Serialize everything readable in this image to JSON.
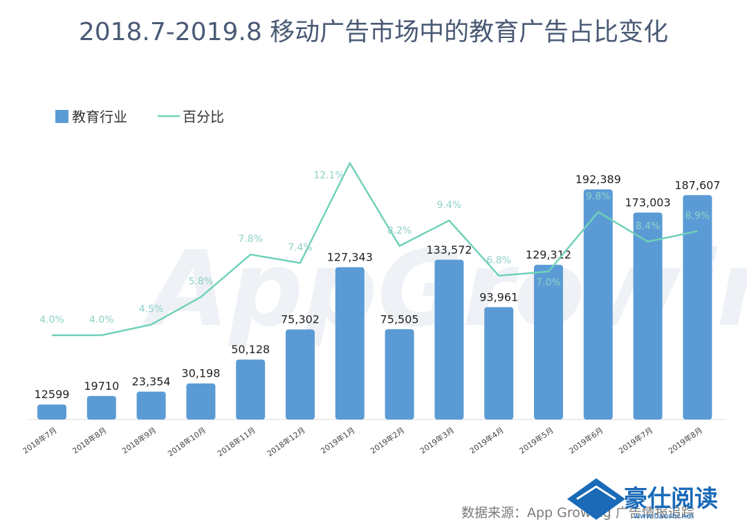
{
  "title": "2018.7-2019.8 移动广告市场中的教育广告占比变化",
  "legend": {
    "bar_label": "教育行业",
    "line_label": "百分比"
  },
  "source": "数据来源：App Growing 广告情报追踪",
  "watermark": {
    "background": "AppGrowing",
    "corner_text": "豪仕阅读",
    "corner_url": "www.haoshi.net"
  },
  "colors": {
    "bar": "#5b9bd5",
    "line": "#6fd1b9",
    "title": "#4a5a75"
  },
  "chart_data": {
    "type": "bar",
    "categories": [
      "2018年7月",
      "2018年8月",
      "2018年9月",
      "2018年10月",
      "2018年11月",
      "2018年12月",
      "2019年1月",
      "2019年2月",
      "2019年3月",
      "2019年4月",
      "2019年5月",
      "2019年6月",
      "2019年7月",
      "2019年8月"
    ],
    "series": [
      {
        "name": "教育行业",
        "type": "bar",
        "values": [
          12599,
          19710,
          23354,
          30198,
          50128,
          75302,
          127343,
          75505,
          133572,
          93961,
          129312,
          192389,
          173003,
          187607
        ],
        "labels": [
          "12599",
          "19710",
          "23,354",
          "30,198",
          "50,128",
          "75,302",
          "127,343",
          "75,505",
          "133,572",
          "93,961",
          "129,312",
          "192,389",
          "173,003",
          "187,607"
        ]
      },
      {
        "name": "百分比",
        "type": "line",
        "values": [
          4.0,
          4.0,
          4.5,
          5.8,
          7.8,
          7.4,
          12.1,
          8.2,
          9.4,
          6.8,
          7.0,
          9.8,
          8.4,
          8.9
        ],
        "labels": [
          "4.0%",
          "4.0%",
          "4.5%",
          "5.8%",
          "7.8%",
          "7.4%",
          "12.1%",
          "8.2%",
          "9.4%",
          "6.8%",
          "7.0%",
          "9.8%",
          "8.4%",
          "8.9%"
        ]
      }
    ],
    "legend_position": "top-left",
    "grid": false
  }
}
